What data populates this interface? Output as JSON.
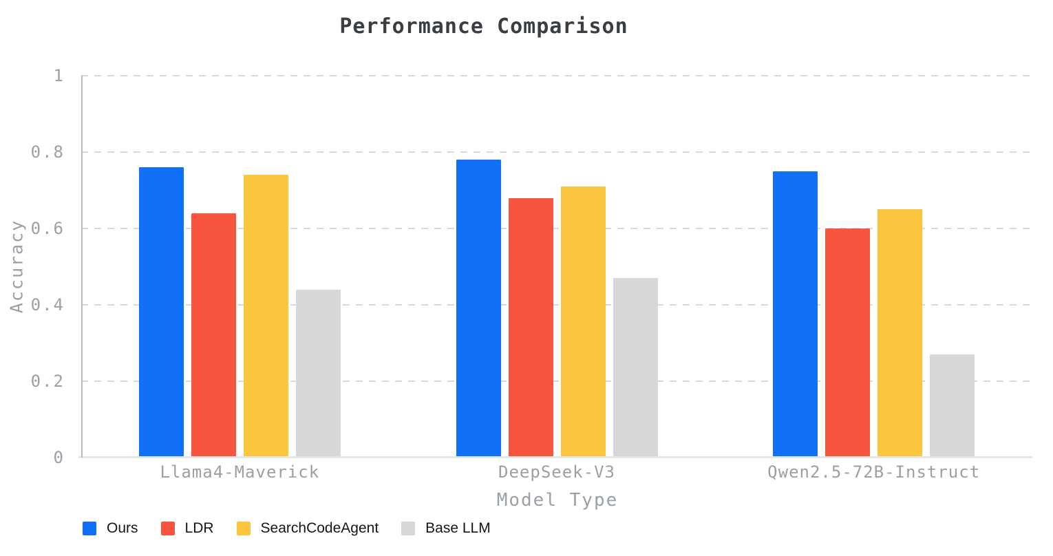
{
  "chart_data": {
    "type": "bar",
    "title": "Performance Comparison",
    "xlabel": "Model Type",
    "ylabel": "Accuracy",
    "categories": [
      "Llama4-Maverick",
      "DeepSeek-V3",
      "Qwen2.5-72B-Instruct"
    ],
    "series": [
      {
        "name": "Ours",
        "color": "#1070f8",
        "values": [
          0.76,
          0.78,
          0.75
        ]
      },
      {
        "name": "LDR",
        "color": "#f8543e",
        "values": [
          0.64,
          0.68,
          0.6
        ]
      },
      {
        "name": "SearchCodeAgent",
        "color": "#fcc53e",
        "values": [
          0.74,
          0.71,
          0.65
        ]
      },
      {
        "name": "Base LLM",
        "color": "#d8d8d8",
        "values": [
          0.44,
          0.47,
          0.27
        ]
      }
    ],
    "ylim": [
      0,
      1
    ],
    "yticks": [
      0,
      0.2,
      0.4,
      0.6,
      0.8,
      1
    ],
    "ytick_labels": [
      "0",
      "0.2",
      "0.4",
      "0.6",
      "0.8",
      "1"
    ],
    "grid": "horizontal-dashed",
    "legend_position": "bottom-left"
  }
}
